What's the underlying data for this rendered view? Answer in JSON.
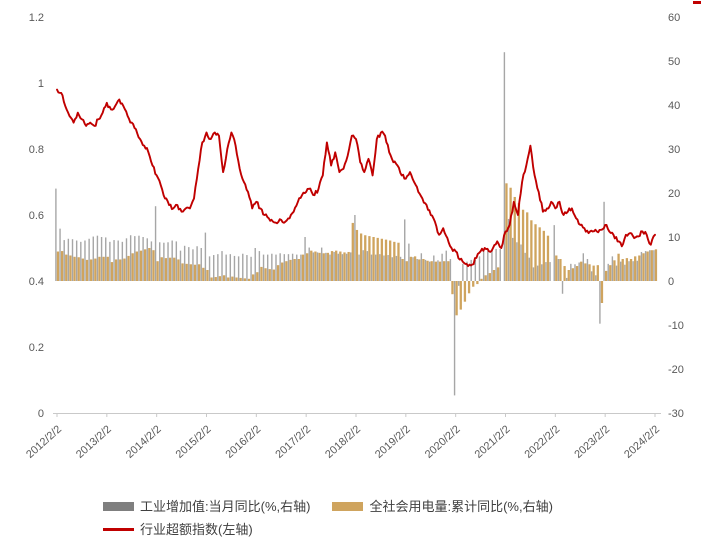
{
  "colors": {
    "red_line": "#c00000",
    "tan_bar": "#cfa45e",
    "gray_bar": "#a6a6a6",
    "legend_gray_swatch": "#7f7f7f",
    "axis_text": "#595959",
    "axis_line": "#c9c9c9",
    "legend_text": "#404040"
  },
  "chart_data": {
    "type": "bar+line combo",
    "title": "",
    "x_start_month": "2012-02",
    "x_end_month": "2024-02",
    "months_count": 145,
    "x_tick_labels": [
      "2012/2/2",
      "2013/2/2",
      "2014/2/2",
      "2015/2/2",
      "2016/2/2",
      "2017/2/2",
      "2018/2/2",
      "2019/2/2",
      "2020/2/2",
      "2021/2/2",
      "2022/2/2",
      "2023/2/2",
      "2024/2/2"
    ],
    "left_axis": {
      "min": 0,
      "max": 1.2,
      "tick_labels": [
        "0",
        "0.2",
        "0.4",
        "0.6",
        "0.8",
        "1",
        "1.2"
      ],
      "tick_values": [
        0,
        0.2,
        0.4,
        0.6,
        0.8,
        1,
        1.2
      ]
    },
    "right_axis": {
      "min": -30,
      "max": 60,
      "tick_labels": [
        "-30",
        "-20",
        "-10",
        "0",
        "10",
        "20",
        "30",
        "40",
        "50",
        "60"
      ],
      "tick_values": [
        -30,
        -20,
        -10,
        0,
        10,
        20,
        30,
        40,
        50,
        60
      ]
    },
    "grid": "off",
    "legend_position": "bottom-left",
    "series": [
      {
        "name": "工业增加值:当月同比(%,右轴)",
        "type": "bar",
        "axis": "right",
        "color": "#a6a6a6",
        "legend_color": "#7f7f7f",
        "values": [
          21,
          11.9,
          9.3,
          9.6,
          9.5,
          9.2,
          8.9,
          9.2,
          9.6,
          10.1,
          10.3,
          10,
          9.9,
          8.9,
          9.3,
          9.2,
          8.9,
          9.7,
          10.4,
          10.2,
          10.3,
          10,
          9.7,
          9,
          17,
          8.8,
          8.7,
          8.8,
          9.2,
          9,
          6.9,
          8,
          7.7,
          7.2,
          7.9,
          7.5,
          11,
          5.6,
          5.9,
          6.1,
          6.8,
          6,
          6.1,
          5.7,
          5.6,
          6.2,
          5.9,
          5.5,
          7.5,
          6.8,
          6,
          6,
          6.2,
          6,
          6.3,
          6.1,
          6.1,
          6.2,
          6,
          6,
          10,
          7.6,
          6.5,
          6.5,
          7.6,
          6.4,
          6,
          6.6,
          6.2,
          6.1,
          6.2,
          6.5,
          15,
          6,
          7,
          6.8,
          6,
          6,
          6.1,
          5.8,
          5.9,
          5.4,
          5.7,
          5.5,
          14,
          8.5,
          5.4,
          5,
          6.3,
          4.8,
          4.4,
          5.8,
          4.7,
          6.2,
          6.9,
          5,
          -26,
          -1.1,
          3.9,
          4.4,
          4.8,
          4.8,
          5.6,
          6.9,
          6.9,
          7,
          7.3,
          7.3,
          52,
          14.1,
          9.8,
          8.8,
          8.3,
          6.4,
          5.3,
          3.1,
          3.5,
          3.8,
          4.3,
          4.3,
          12.7,
          5,
          -2.9,
          0.7,
          3.9,
          3.8,
          4.2,
          6.3,
          5,
          2.2,
          1.3,
          -9.7,
          18,
          3.9,
          5.6,
          3.5,
          4.4,
          3.7,
          4.5,
          4.5,
          4.6,
          6.6,
          6.8,
          7,
          7
        ]
      },
      {
        "name": "全社会用电量:累计同比(%,右轴)",
        "type": "bar",
        "axis": "right",
        "color": "#cfa45e",
        "legend_color": "#cfa45e",
        "values": [
          6.7,
          6.8,
          6,
          5.8,
          5.5,
          5.4,
          5.1,
          4.8,
          4.9,
          5.1,
          5.5,
          5.5,
          5.5,
          4.3,
          4.9,
          4.9,
          5.1,
          5.7,
          6.3,
          6.7,
          6.9,
          7.2,
          7.5,
          7,
          4.5,
          5.4,
          5.2,
          5.3,
          5.3,
          4.9,
          4,
          3.9,
          3.8,
          3.7,
          3.8,
          3,
          2.5,
          0.8,
          0.9,
          1.1,
          1.3,
          0.8,
          1,
          0.8,
          0.7,
          0.6,
          0.5,
          1.5,
          2,
          3.2,
          2.9,
          2.7,
          2.6,
          3.6,
          4.2,
          4.5,
          4.8,
          5,
          5,
          6,
          6.3,
          6.9,
          6.7,
          6.4,
          6.3,
          6.4,
          6.8,
          6.9,
          6.7,
          6.5,
          6.6,
          13.2,
          11.6,
          10.8,
          10.4,
          10.2,
          10,
          9.8,
          9.6,
          9.4,
          9.2,
          8.9,
          8.7,
          5,
          4.5,
          5.5,
          5.6,
          4.9,
          5,
          4.6,
          4.5,
          4.4,
          4.4,
          4.5,
          4.5,
          -3,
          -7.8,
          -6.5,
          -4.7,
          -2.8,
          -1.3,
          -0.7,
          0.5,
          1.3,
          1.8,
          2.5,
          3.1,
          null,
          22.2,
          21.2,
          19.1,
          17.7,
          16.2,
          15.6,
          13.8,
          12.9,
          12.2,
          11.4,
          10.3,
          null,
          5.8,
          5,
          3.4,
          2.5,
          2.9,
          3.4,
          4.4,
          4,
          3.8,
          3.5,
          3.6,
          -5,
          2.3,
          3.6,
          4.7,
          6.2,
          5,
          5.2,
          5,
          5.6,
          5.8,
          6.3,
          6.7,
          7,
          7.2
        ]
      },
      {
        "name": "行业超额指数(左轴)",
        "type": "line",
        "axis": "left",
        "color": "#c00000",
        "legend_color": "#c00000",
        "values": [
          0.98,
          0.97,
          0.93,
          0.9,
          0.88,
          0.91,
          0.89,
          0.87,
          0.88,
          0.87,
          0.89,
          0.91,
          0.94,
          0.92,
          0.93,
          0.95,
          0.93,
          0.9,
          0.88,
          0.86,
          0.83,
          0.81,
          0.79,
          0.75,
          0.72,
          0.69,
          0.65,
          0.63,
          0.62,
          0.63,
          0.61,
          0.62,
          0.62,
          0.65,
          0.74,
          0.82,
          0.85,
          0.83,
          0.85,
          0.84,
          0.73,
          0.8,
          0.85,
          0.81,
          0.74,
          0.7,
          0.67,
          0.62,
          0.64,
          0.62,
          0.6,
          0.59,
          0.58,
          0.575,
          0.585,
          0.58,
          0.59,
          0.61,
          0.64,
          0.66,
          0.67,
          0.68,
          0.66,
          0.68,
          0.72,
          0.82,
          0.75,
          0.79,
          0.73,
          0.74,
          0.78,
          0.84,
          0.83,
          0.76,
          0.73,
          0.77,
          0.72,
          0.83,
          0.85,
          0.84,
          0.79,
          0.76,
          0.75,
          0.72,
          0.71,
          0.73,
          0.7,
          0.67,
          0.65,
          0.63,
          0.6,
          0.58,
          0.54,
          0.56,
          0.53,
          0.5,
          0.49,
          0.465,
          0.455,
          0.445,
          0.45,
          0.47,
          0.49,
          0.5,
          0.49,
          0.5,
          0.52,
          0.5,
          0.55,
          0.57,
          0.64,
          0.6,
          0.7,
          0.75,
          0.81,
          0.72,
          0.67,
          0.61,
          0.62,
          0.64,
          0.62,
          0.64,
          0.6,
          0.61,
          0.62,
          0.59,
          0.57,
          0.56,
          0.545,
          0.55,
          0.55,
          0.555,
          0.57,
          0.55,
          0.54,
          0.52,
          0.505,
          0.54,
          0.545,
          0.53,
          0.535,
          0.55,
          0.54,
          0.51,
          0.54
        ]
      }
    ]
  },
  "legend": {
    "item1": "工业增加值:当月同比(%,右轴)",
    "item2": "全社会用电量:累计同比(%,右轴)",
    "item3": "行业超额指数(左轴)"
  }
}
